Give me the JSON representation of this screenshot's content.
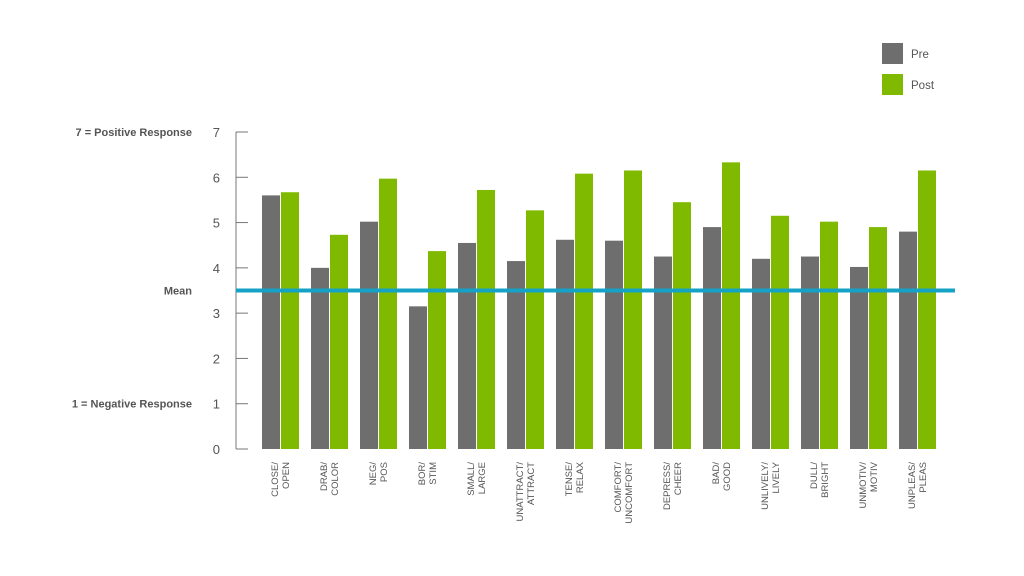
{
  "chart_data": {
    "type": "bar",
    "categories": [
      [
        "CLOSE/",
        "OPEN"
      ],
      [
        "DRAB/",
        "COLOR"
      ],
      [
        "NEG/",
        "POS"
      ],
      [
        "BOR/",
        "STIM"
      ],
      [
        "SMALL/",
        "LARGE"
      ],
      [
        "UNATTRACT/",
        "ATTRACT"
      ],
      [
        "TENSE/",
        "RELAX"
      ],
      [
        "COMFORT/",
        "UNCOMFORT"
      ],
      [
        "DEPRESS/",
        "CHEER"
      ],
      [
        "BAD/",
        "GOOD"
      ],
      [
        "UNLIVELY/",
        "LIVELY"
      ],
      [
        "DULL/",
        "BRIGHT"
      ],
      [
        "UNMOTIV/",
        "MOTIV"
      ],
      [
        "UNPLEAS/",
        "PLEAS"
      ]
    ],
    "series": [
      {
        "name": "Pre",
        "color": "#6e6e6e",
        "values": [
          5.6,
          4.0,
          5.02,
          3.15,
          4.55,
          4.15,
          4.62,
          4.6,
          4.25,
          4.9,
          4.2,
          4.25,
          4.02,
          4.8
        ]
      },
      {
        "name": "Post",
        "color": "#7fba00",
        "values": [
          5.67,
          4.73,
          5.97,
          4.37,
          5.72,
          5.27,
          6.08,
          6.15,
          5.45,
          6.33,
          5.15,
          5.02,
          4.9,
          6.15
        ]
      }
    ],
    "ylim": [
      0,
      7
    ],
    "yticks": [
      "0",
      "1",
      "2",
      "3",
      "4",
      "5",
      "6",
      "7"
    ],
    "mean": {
      "label": "Mean",
      "value": 3.5,
      "color": "#14a3c7"
    },
    "side_labels": {
      "top": {
        "text": "7 = Positive Response",
        "value": 7
      },
      "bottom": {
        "text": "1 = Negative Response",
        "value": 1
      }
    },
    "legend": {
      "position": "top-right"
    },
    "grid": false
  }
}
